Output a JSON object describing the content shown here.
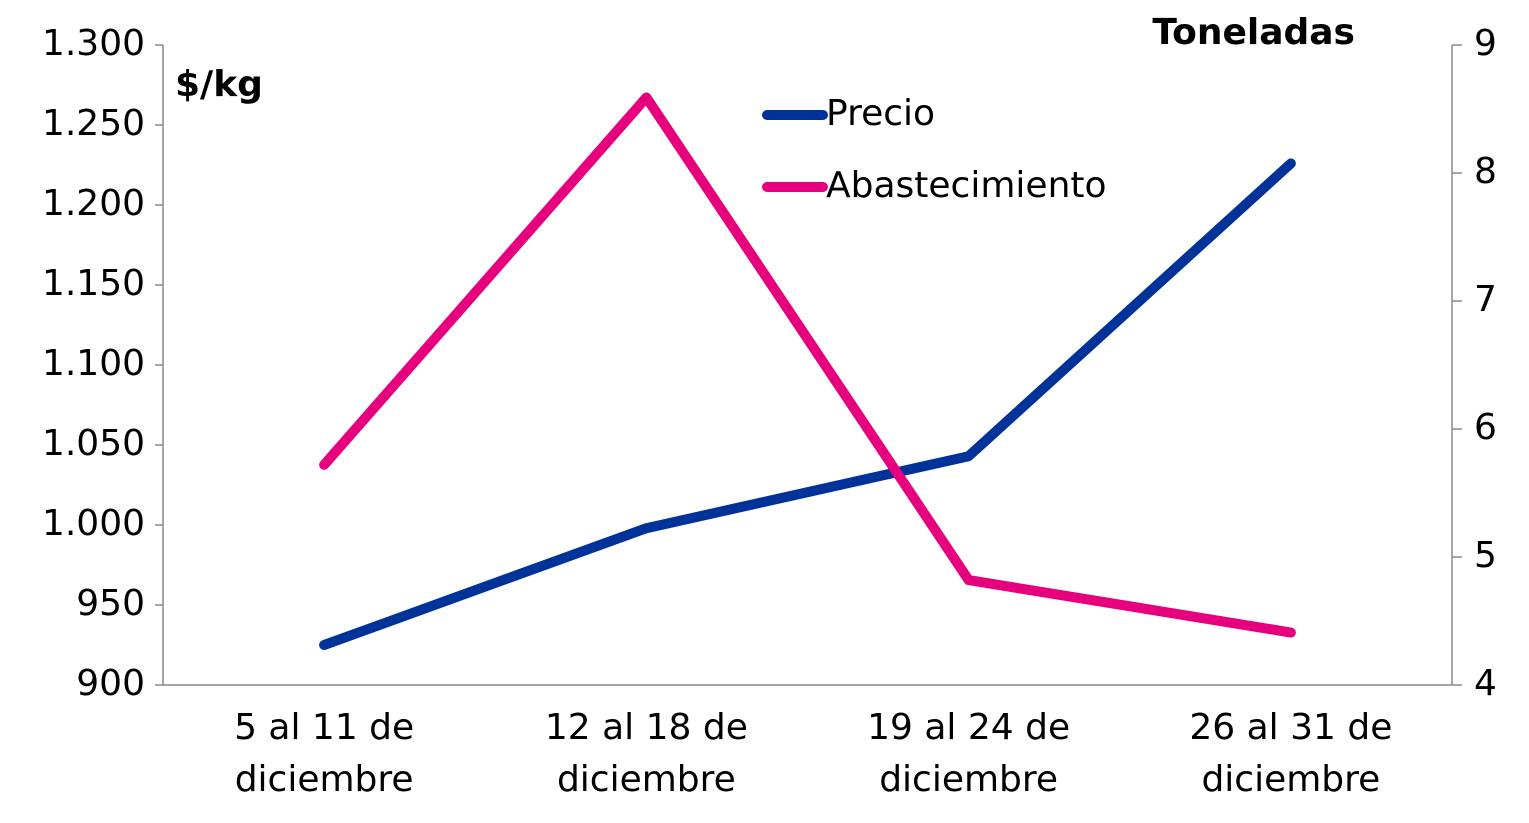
{
  "chart_data": {
    "type": "line",
    "y_label": "$/kg",
    "y2_label": "Toneladas",
    "categories": [
      "5 al 11 de diciembre",
      "12 al 18 de diciembre",
      "19 al 24 de diciembre",
      "26 al 31 de diciembre"
    ],
    "series": [
      {
        "name": "Precio",
        "color": "#003399",
        "values": [
          925,
          998,
          1043,
          1226
        ]
      },
      {
        "name": "Abastecimiento",
        "color": "#e6007e",
        "axis": "y2",
        "values": [
          5.72,
          8.59,
          4.82,
          4.41
        ]
      }
    ],
    "ylim": [
      900,
      1300
    ],
    "yticks": [
      900,
      950,
      {
        "value": 1000,
        "label": "1.000"
      },
      {
        "value": 1050,
        "label": "1.050"
      },
      {
        "value": 1100,
        "label": "1.100"
      },
      {
        "value": 1150,
        "label": "1.150"
      },
      {
        "value": 1200,
        "label": "1.200"
      },
      {
        "value": 1250,
        "label": "1.250"
      },
      {
        "value": 1300,
        "label": "1.300"
      }
    ],
    "y2lim": [
      4,
      9
    ],
    "y2ticks": [
      4,
      5,
      6,
      7,
      8,
      9
    ]
  }
}
